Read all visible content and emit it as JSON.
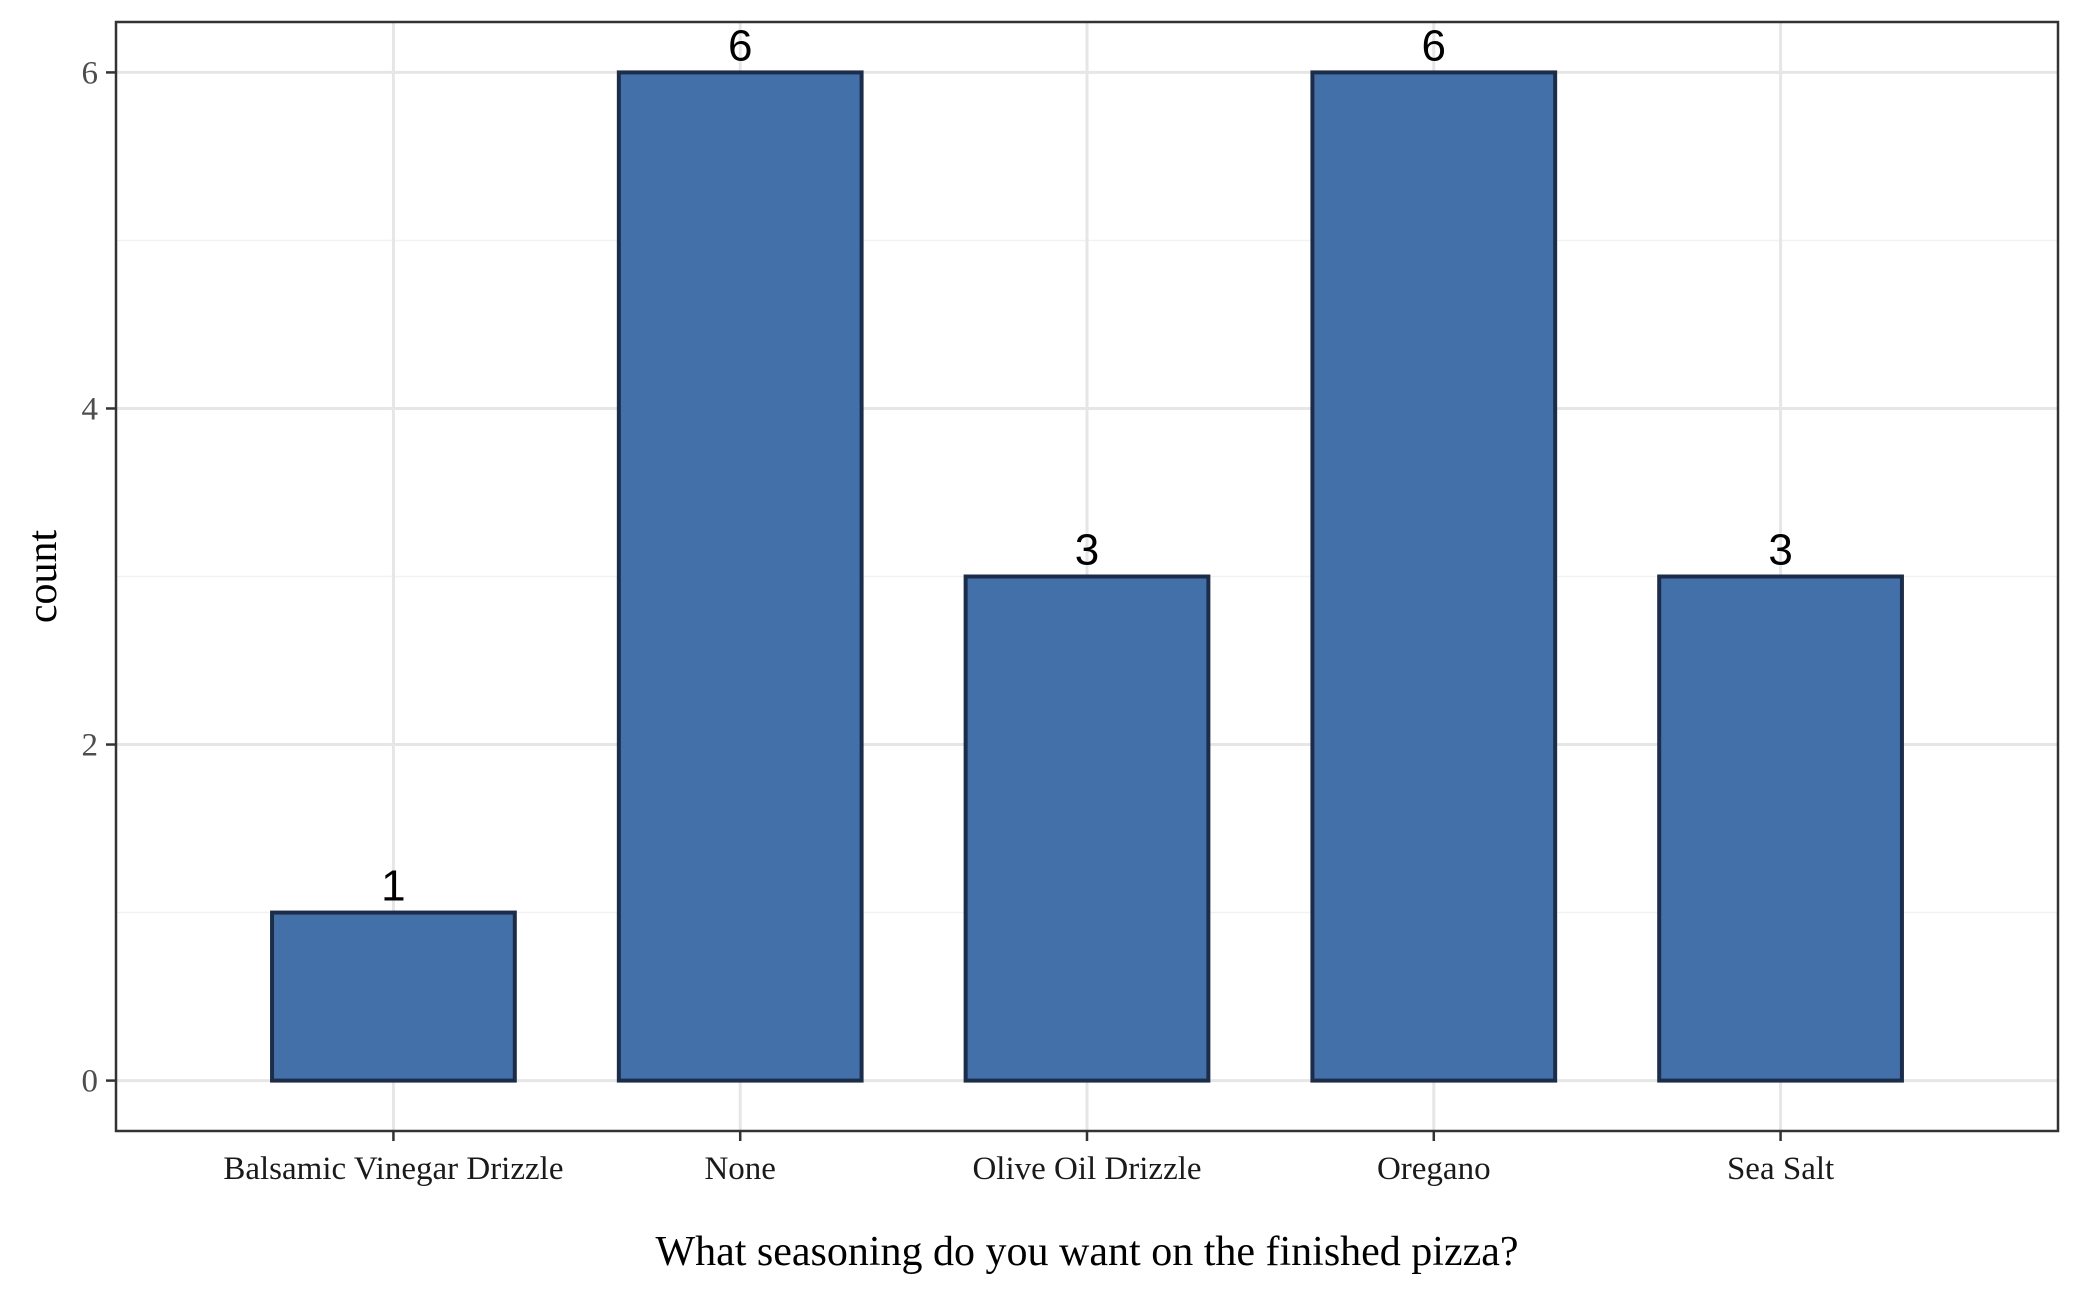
{
  "chart_data": {
    "type": "bar",
    "categories": [
      "Balsamic Vinegar Drizzle",
      "None",
      "Olive Oil Drizzle",
      "Oregano",
      "Sea Salt"
    ],
    "values": [
      1,
      6,
      3,
      6,
      3
    ],
    "data_labels": [
      "1",
      "6",
      "3",
      "6",
      "3"
    ],
    "xlabel": "What seasoning do you want on the finished pizza?",
    "ylabel": "count",
    "ylim": [
      -0.3,
      6.3
    ],
    "yticks": [
      0,
      2,
      4,
      6
    ],
    "ytick_labels": [
      "0",
      "2",
      "4",
      "6"
    ],
    "grid": true,
    "legend": "none",
    "colors": {
      "bar_fill": "#4470AA",
      "bar_outline": "#1B2D48",
      "grid_major": "#E6E6E6",
      "grid_minor": "#F2F2F2",
      "panel_border": "#333333",
      "background": "#FFFFFF"
    }
  }
}
